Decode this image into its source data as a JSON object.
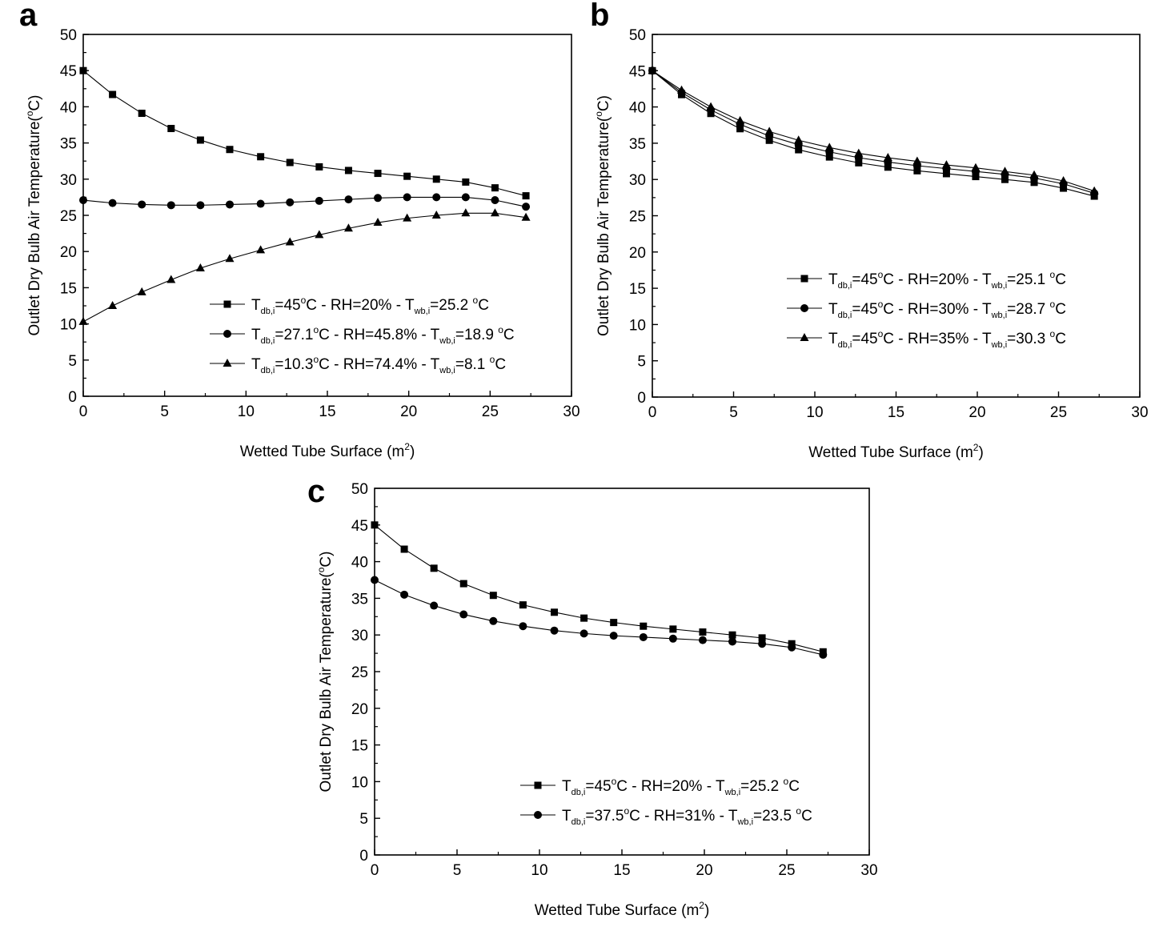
{
  "chart_data": [
    {
      "type": "line",
      "panel_label": "a",
      "xlabel": "Wetted Tube Surface (m",
      "xlabel_sup": "2",
      "xlabel_end": ")",
      "ylabel": "Outlet Dry Bulb Air Temperature(",
      "ylabel_sup": "o",
      "ylabel_end": "C)",
      "xlim": [
        0,
        30
      ],
      "ylim": [
        0,
        50
      ],
      "xticks": [
        0,
        5,
        10,
        15,
        20,
        25,
        30
      ],
      "yticks": [
        0,
        5,
        10,
        15,
        20,
        25,
        30,
        35,
        40,
        45,
        50
      ],
      "x": [
        0,
        1.8,
        3.6,
        5.4,
        7.2,
        9.0,
        10.9,
        12.7,
        14.5,
        16.3,
        18.1,
        19.9,
        21.7,
        23.5,
        25.3,
        27.2
      ],
      "legend_position": "center-right",
      "series": [
        {
          "marker": "square",
          "legend": [
            {
              "t": "T",
              "cls": ""
            },
            {
              "t": "db,i",
              "cls": "sub"
            },
            {
              "t": "=45",
              "cls": ""
            },
            {
              "t": "o",
              "cls": "sup"
            },
            {
              "t": "C - RH=20% - T",
              "cls": ""
            },
            {
              "t": "wb,i",
              "cls": "sub"
            },
            {
              "t": "=25.2 ",
              "cls": ""
            },
            {
              "t": "o",
              "cls": "sup"
            },
            {
              "t": "C",
              "cls": ""
            }
          ],
          "values": [
            45.0,
            41.7,
            39.1,
            37.0,
            35.4,
            34.1,
            33.1,
            32.3,
            31.7,
            31.2,
            30.8,
            30.4,
            30.0,
            29.6,
            28.8,
            27.7
          ]
        },
        {
          "marker": "circle",
          "legend": [
            {
              "t": "T",
              "cls": ""
            },
            {
              "t": "db,i",
              "cls": "sub"
            },
            {
              "t": "=27.1",
              "cls": ""
            },
            {
              "t": "o",
              "cls": "sup"
            },
            {
              "t": "C - RH=45.8% - T",
              "cls": ""
            },
            {
              "t": "wb,i",
              "cls": "sub"
            },
            {
              "t": "=18.9 ",
              "cls": ""
            },
            {
              "t": "o",
              "cls": "sup"
            },
            {
              "t": "C",
              "cls": ""
            }
          ],
          "values": [
            27.1,
            26.7,
            26.5,
            26.4,
            26.4,
            26.5,
            26.6,
            26.8,
            27.0,
            27.2,
            27.4,
            27.5,
            27.5,
            27.5,
            27.1,
            26.2
          ]
        },
        {
          "marker": "triangle",
          "legend": [
            {
              "t": "T",
              "cls": ""
            },
            {
              "t": "db,i",
              "cls": "sub"
            },
            {
              "t": "=10.3",
              "cls": ""
            },
            {
              "t": "o",
              "cls": "sup"
            },
            {
              "t": "C - RH=74.4% - T",
              "cls": ""
            },
            {
              "t": "wb,i",
              "cls": "sub"
            },
            {
              "t": "=8.1 ",
              "cls": ""
            },
            {
              "t": "o",
              "cls": "sup"
            },
            {
              "t": "C",
              "cls": ""
            }
          ],
          "values": [
            10.3,
            12.5,
            14.4,
            16.1,
            17.7,
            19.0,
            20.2,
            21.3,
            22.3,
            23.2,
            24.0,
            24.6,
            25.0,
            25.3,
            25.3,
            24.7
          ]
        }
      ]
    },
    {
      "type": "line",
      "panel_label": "b",
      "xlabel": "Wetted Tube Surface (m",
      "xlabel_sup": "2",
      "xlabel_end": ")",
      "ylabel": "Outlet Dry Bulb Air Temperature(",
      "ylabel_sup": "o",
      "ylabel_end": "C)",
      "xlim": [
        0,
        30
      ],
      "ylim": [
        0,
        50
      ],
      "xticks": [
        0,
        5,
        10,
        15,
        20,
        25,
        30
      ],
      "yticks": [
        0,
        5,
        10,
        15,
        20,
        25,
        30,
        35,
        40,
        45,
        50
      ],
      "x": [
        0,
        1.8,
        3.6,
        5.4,
        7.2,
        9.0,
        10.9,
        12.7,
        14.5,
        16.3,
        18.1,
        19.9,
        21.7,
        23.5,
        25.3,
        27.2
      ],
      "legend_position": "center-right",
      "series": [
        {
          "marker": "square",
          "legend": [
            {
              "t": "T",
              "cls": ""
            },
            {
              "t": "db,i",
              "cls": "sub"
            },
            {
              "t": "=45",
              "cls": ""
            },
            {
              "t": "o",
              "cls": "sup"
            },
            {
              "t": "C - RH=20% - T",
              "cls": ""
            },
            {
              "t": "wb,i",
              "cls": "sub"
            },
            {
              "t": "=25.1 ",
              "cls": ""
            },
            {
              "t": "o",
              "cls": "sup"
            },
            {
              "t": "C",
              "cls": ""
            }
          ],
          "values": [
            45.0,
            41.7,
            39.1,
            37.0,
            35.4,
            34.1,
            33.1,
            32.3,
            31.7,
            31.2,
            30.8,
            30.4,
            30.0,
            29.6,
            28.8,
            27.7
          ]
        },
        {
          "marker": "circle",
          "legend": [
            {
              "t": "T",
              "cls": ""
            },
            {
              "t": "db,i",
              "cls": "sub"
            },
            {
              "t": "=45",
              "cls": ""
            },
            {
              "t": "o",
              "cls": "sup"
            },
            {
              "t": "C - RH=30% - T",
              "cls": ""
            },
            {
              "t": "wb,i",
              "cls": "sub"
            },
            {
              "t": "=28.7 ",
              "cls": ""
            },
            {
              "t": "o",
              "cls": "sup"
            },
            {
              "t": "C",
              "cls": ""
            }
          ],
          "values": [
            45.0,
            42.0,
            39.6,
            37.6,
            36.0,
            34.8,
            33.8,
            33.0,
            32.4,
            31.9,
            31.5,
            31.1,
            30.7,
            30.2,
            29.4,
            28.1
          ]
        },
        {
          "marker": "triangle",
          "legend": [
            {
              "t": "T",
              "cls": ""
            },
            {
              "t": "db,i",
              "cls": "sub"
            },
            {
              "t": "=45",
              "cls": ""
            },
            {
              "t": "o",
              "cls": "sup"
            },
            {
              "t": "C - RH=35% - T",
              "cls": ""
            },
            {
              "t": "wb,i",
              "cls": "sub"
            },
            {
              "t": "=30.3 ",
              "cls": ""
            },
            {
              "t": "o",
              "cls": "sup"
            },
            {
              "t": "C",
              "cls": ""
            }
          ],
          "values": [
            45.0,
            42.3,
            40.0,
            38.1,
            36.6,
            35.4,
            34.4,
            33.6,
            33.0,
            32.5,
            32.0,
            31.6,
            31.1,
            30.6,
            29.8,
            28.4
          ]
        }
      ]
    },
    {
      "type": "line",
      "panel_label": "c",
      "xlabel": "Wetted Tube Surface (m",
      "xlabel_sup": "2",
      "xlabel_end": ")",
      "ylabel": "Outlet Dry Bulb Air Temperature(",
      "ylabel_sup": "o",
      "ylabel_end": "C)",
      "xlim": [
        0,
        30
      ],
      "ylim": [
        0,
        50
      ],
      "xticks": [
        0,
        5,
        10,
        15,
        20,
        25,
        30
      ],
      "yticks": [
        0,
        5,
        10,
        15,
        20,
        25,
        30,
        35,
        40,
        45,
        50
      ],
      "x": [
        0,
        1.8,
        3.6,
        5.4,
        7.2,
        9.0,
        10.9,
        12.7,
        14.5,
        16.3,
        18.1,
        19.9,
        21.7,
        23.5,
        25.3,
        27.2
      ],
      "legend_position": "lower-right",
      "series": [
        {
          "marker": "square",
          "legend": [
            {
              "t": "T",
              "cls": ""
            },
            {
              "t": "db,i",
              "cls": "sub"
            },
            {
              "t": "=45",
              "cls": ""
            },
            {
              "t": "o",
              "cls": "sup"
            },
            {
              "t": "C - RH=20% - T",
              "cls": ""
            },
            {
              "t": "wb,i",
              "cls": "sub"
            },
            {
              "t": "=25.2 ",
              "cls": ""
            },
            {
              "t": "o",
              "cls": "sup"
            },
            {
              "t": "C",
              "cls": ""
            }
          ],
          "values": [
            45.0,
            41.7,
            39.1,
            37.0,
            35.4,
            34.1,
            33.1,
            32.3,
            31.7,
            31.2,
            30.8,
            30.4,
            30.0,
            29.6,
            28.8,
            27.7
          ]
        },
        {
          "marker": "circle",
          "legend": [
            {
              "t": "T",
              "cls": ""
            },
            {
              "t": "db,i",
              "cls": "sub"
            },
            {
              "t": "=37.5",
              "cls": ""
            },
            {
              "t": "o",
              "cls": "sup"
            },
            {
              "t": "C - RH=31% - T",
              "cls": ""
            },
            {
              "t": "wb,i",
              "cls": "sub"
            },
            {
              "t": "=23.5 ",
              "cls": ""
            },
            {
              "t": "o",
              "cls": "sup"
            },
            {
              "t": "C",
              "cls": ""
            }
          ],
          "values": [
            37.5,
            35.5,
            34.0,
            32.8,
            31.9,
            31.2,
            30.6,
            30.2,
            29.9,
            29.7,
            29.5,
            29.3,
            29.1,
            28.8,
            28.3,
            27.3
          ]
        }
      ]
    }
  ]
}
